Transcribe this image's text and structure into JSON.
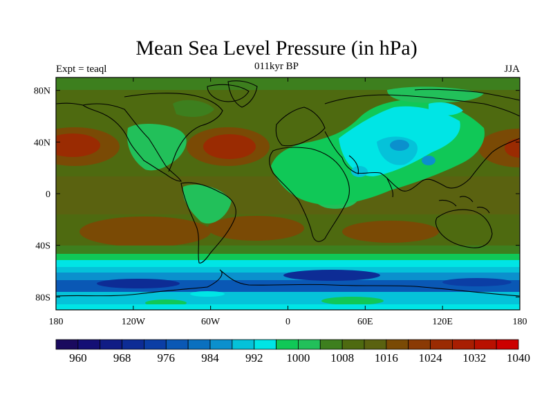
{
  "map": {
    "title": "Mean Sea Level Pressure (in hPa)",
    "subtitle_left": "Expt = teaql",
    "subtitle_center": "011kyr BP",
    "subtitle_right": "JJA",
    "lon_ticks": [
      "180",
      "120W",
      "60W",
      "0",
      "60E",
      "120E",
      "180"
    ],
    "lat_ticks": [
      "80N",
      "40N",
      "0",
      "40S",
      "80S"
    ],
    "lon_values": [
      -180,
      -120,
      -60,
      0,
      60,
      120,
      180
    ],
    "lat_values": [
      80,
      40,
      0,
      -40,
      -80
    ],
    "lat_range": [
      -90,
      90
    ],
    "lon_range": [
      -180,
      180
    ]
  },
  "colorbar": {
    "labels": [
      "960",
      "968",
      "976",
      "984",
      "992",
      "1000",
      "1008",
      "1016",
      "1024",
      "1032",
      "1040"
    ],
    "colors": [
      "#1a0a5e",
      "#140f75",
      "#101c85",
      "#0d2c95",
      "#0b3ea5",
      "#0a58b5",
      "#0a70bf",
      "#0b90cd",
      "#05c2d9",
      "#00e5e5",
      "#10c857",
      "#22c05a",
      "#3d7f1e",
      "#4e6a10",
      "#5a6210",
      "#7a4a05",
      "#8a3a05",
      "#9a2b02",
      "#a81e02",
      "#b81000",
      "#cc0000"
    ]
  }
}
